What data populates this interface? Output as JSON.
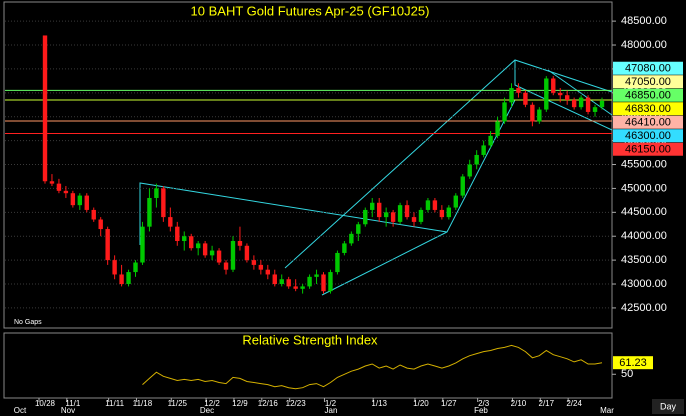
{
  "chart_data": [
    {
      "type": "candlestick",
      "title": "10 BAHT Gold Futures Apr-25 (GF10J25)",
      "gap_mode": "No Gaps",
      "interval": "Day",
      "up_color": "#00c800",
      "down_color": "#ff1a1a",
      "grid": true,
      "categories": [
        "10/28",
        null,
        null,
        null,
        "11/1",
        null,
        null,
        null,
        null,
        null,
        "11/11",
        null,
        null,
        null,
        "11/18",
        null,
        null,
        null,
        null,
        "11/25",
        null,
        null,
        null,
        null,
        "12/2",
        null,
        null,
        null,
        "12/9",
        null,
        null,
        null,
        "12/16",
        null,
        null,
        null,
        "12/23",
        null,
        null,
        null,
        null,
        "1/2",
        null,
        null,
        null,
        null,
        null,
        null,
        "1/13",
        null,
        null,
        null,
        null,
        null,
        "1/20",
        null,
        null,
        null,
        "1/27",
        null,
        null,
        null,
        null,
        "2/3",
        null,
        null,
        null,
        null,
        "2/10",
        null,
        null,
        null,
        "2/17",
        null,
        null,
        null,
        "2/24",
        null,
        null,
        null,
        null
      ],
      "x_months": [
        "Oct",
        "Nov",
        "Dec",
        "Jan",
        "Feb",
        "Mar"
      ],
      "open": [
        48200,
        45150,
        45100,
        44950,
        44900,
        44650,
        44850,
        44550,
        44350,
        44150,
        43500,
        43200,
        43000,
        43250,
        43450,
        44200,
        44800,
        45000,
        44400,
        44200,
        43900,
        44000,
        43750,
        43850,
        43600,
        43700,
        43450,
        43300,
        43900,
        43800,
        43500,
        43400,
        43300,
        43200,
        43000,
        43100,
        42950,
        42900,
        42950,
        43150,
        43200,
        42850,
        43250,
        43650,
        43850,
        44050,
        44250,
        44550,
        44700,
        44400,
        44500,
        44300,
        44650,
        44400,
        44300,
        44550,
        44750,
        44550,
        44400,
        44600,
        44850,
        45250,
        45500,
        45700,
        45900,
        46100,
        46400,
        46800,
        47100,
        47000,
        46750,
        46400,
        46650,
        47300,
        47000,
        46950,
        46850,
        46700,
        46900,
        46600,
        46700
      ],
      "high": [
        48200,
        45300,
        45200,
        45050,
        44950,
        44900,
        44900,
        44600,
        44400,
        44200,
        43600,
        43400,
        43300,
        43500,
        44300,
        45000,
        45100,
        45050,
        44600,
        44300,
        44100,
        44050,
        43900,
        43900,
        43800,
        43750,
        43500,
        44000,
        44200,
        43850,
        43600,
        43500,
        43400,
        43300,
        43200,
        43150,
        43100,
        43000,
        43200,
        43300,
        43250,
        43300,
        43700,
        43900,
        44100,
        44300,
        44600,
        44800,
        44800,
        44600,
        44550,
        44700,
        44750,
        44500,
        44600,
        44800,
        44800,
        44650,
        44650,
        44900,
        45300,
        45600,
        45800,
        46000,
        46200,
        46500,
        46900,
        47200,
        47200,
        47050,
        46800,
        46700,
        47350,
        47350,
        47100,
        47050,
        46900,
        46950,
        46950,
        46750,
        46900
      ],
      "low": [
        45100,
        45050,
        44900,
        44800,
        44600,
        44550,
        44500,
        44300,
        44000,
        43400,
        43100,
        42950,
        42950,
        43150,
        43400,
        44100,
        44600,
        44300,
        44100,
        43800,
        43700,
        43700,
        43600,
        43550,
        43500,
        43400,
        43200,
        43250,
        43700,
        43450,
        43300,
        43200,
        43100,
        42950,
        42950,
        42900,
        42850,
        42800,
        42900,
        43000,
        42800,
        42800,
        43200,
        43600,
        43800,
        43900,
        44200,
        44400,
        44300,
        44200,
        44200,
        44250,
        44350,
        44200,
        44250,
        44500,
        44500,
        44350,
        44350,
        44550,
        44800,
        45200,
        45400,
        45650,
        45850,
        46050,
        46350,
        46700,
        46900,
        46700,
        46300,
        46350,
        46600,
        46950,
        46800,
        46750,
        46650,
        46650,
        46550,
        46500,
        46650
      ],
      "close": [
        45150,
        45100,
        44950,
        44900,
        44650,
        44850,
        44550,
        44350,
        44150,
        43500,
        43200,
        43000,
        43250,
        43450,
        44200,
        44800,
        45000,
        44400,
        44200,
        43900,
        44000,
        43750,
        43850,
        43600,
        43700,
        43450,
        43300,
        43900,
        43800,
        43500,
        43400,
        43300,
        43200,
        43000,
        43100,
        42950,
        42900,
        42950,
        43150,
        43200,
        42850,
        43250,
        43650,
        43850,
        44050,
        44250,
        44550,
        44700,
        44400,
        44500,
        44300,
        44650,
        44400,
        44300,
        44550,
        44750,
        44550,
        44400,
        44600,
        44850,
        45250,
        45500,
        45700,
        45900,
        46100,
        46400,
        46800,
        47100,
        47000,
        46750,
        46400,
        46650,
        47300,
        47000,
        46950,
        46850,
        46700,
        46900,
        46600,
        46700,
        46830
      ],
      "ylim": [
        42080,
        48900
      ],
      "yticks": [
        {
          "value": 42500,
          "label": "42500.00"
        },
        {
          "value": 43000,
          "label": "43000.00"
        },
        {
          "value": 43500,
          "label": "43500.00"
        },
        {
          "value": 44000,
          "label": "44000.00"
        },
        {
          "value": 44500,
          "label": "44500.00"
        },
        {
          "value": 45000,
          "label": "45000.00"
        },
        {
          "value": 45500,
          "label": "45500.00"
        },
        {
          "value": 46000,
          "label": "46000.00"
        },
        {
          "value": 46500,
          "label": "46500.00"
        },
        {
          "value": 47000,
          "label": "47000.00"
        },
        {
          "value": 47500,
          "label": "47500.00"
        },
        {
          "value": 48000,
          "label": "48000.00"
        },
        {
          "value": 48500,
          "label": "48500.00"
        }
      ],
      "price_labels": [
        {
          "value": 47080,
          "label": "47080.00",
          "color": "#66ffff"
        },
        {
          "value": 47050,
          "label": "47050.00",
          "color": "#ffff99",
          "line": "#66ff66"
        },
        {
          "value": 46850,
          "label": "46850.00",
          "color": "#66ff66",
          "line": "#ccff33"
        },
        {
          "value": 46830,
          "label": "46830.00",
          "color": "#ffff00"
        },
        {
          "value": 46410,
          "label": "46410.00",
          "color": "#ffb3a6",
          "line": "#ff9966"
        },
        {
          "value": 46300,
          "label": "46300.00",
          "color": "#33ddff"
        },
        {
          "value": 46150,
          "label": "46150.00",
          "color": "#ff3333",
          "line": "#ff2020"
        }
      ]
    },
    {
      "type": "line",
      "title": "Relative Strength Index",
      "color": "#d4b000",
      "value_label_color": "#ffff00",
      "values": [
        null,
        null,
        null,
        null,
        null,
        null,
        null,
        null,
        null,
        null,
        null,
        null,
        null,
        null,
        40,
        46,
        52,
        48,
        46,
        44,
        45,
        44,
        45,
        43,
        44,
        42,
        41,
        47,
        46,
        43,
        42,
        41,
        40,
        38,
        39,
        37,
        36,
        37,
        40,
        41,
        38,
        42,
        47,
        50,
        53,
        55,
        58,
        60,
        56,
        58,
        55,
        59,
        56,
        55,
        58,
        60,
        58,
        56,
        58,
        61,
        65,
        68,
        70,
        72,
        73,
        75,
        76,
        78,
        76,
        72,
        66,
        68,
        73,
        69,
        67,
        65,
        62,
        64,
        60,
        60,
        61.23
      ],
      "ylim": [
        27,
        90
      ],
      "yticks": [
        50
      ]
    }
  ]
}
